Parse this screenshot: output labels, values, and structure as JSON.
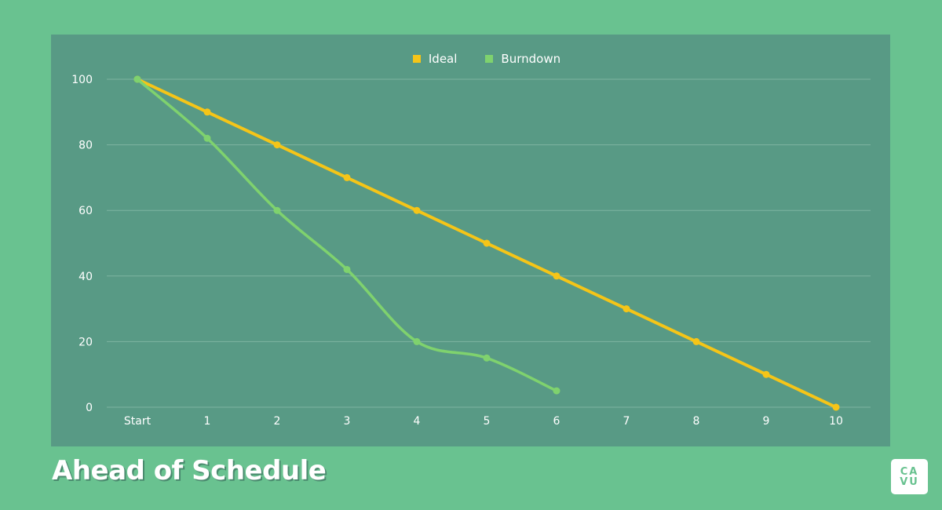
{
  "chart_data": {
    "type": "line",
    "title": "Ahead of Schedule",
    "xlabel": "",
    "ylabel": "",
    "categories": [
      "Start",
      "1",
      "2",
      "3",
      "4",
      "5",
      "6",
      "7",
      "8",
      "9",
      "10"
    ],
    "series": [
      {
        "name": "Ideal",
        "color": "#f5c518",
        "values": [
          100,
          90,
          80,
          70,
          60,
          50,
          40,
          30,
          20,
          10,
          0
        ]
      },
      {
        "name": "Burndown",
        "color": "#7fd26e",
        "values": [
          100,
          82,
          60,
          42,
          20,
          15,
          5
        ]
      }
    ],
    "yticks": [
      0,
      20,
      40,
      60,
      80,
      100
    ],
    "ylim": [
      0,
      100
    ],
    "grid": true,
    "legend_position": "top"
  },
  "legend": {
    "items": [
      {
        "label": "Ideal",
        "color": "#f5c518"
      },
      {
        "label": "Burndown",
        "color": "#7fd26e"
      }
    ]
  },
  "title": "Ahead of Schedule",
  "logo": {
    "line1": "CA",
    "line2": "VU"
  },
  "colors": {
    "background": "#69c290",
    "panel": "#589a85",
    "ideal": "#f5c518",
    "burndown": "#7fd26e",
    "grid": "#8fc0ae",
    "text": "#ffffff"
  }
}
